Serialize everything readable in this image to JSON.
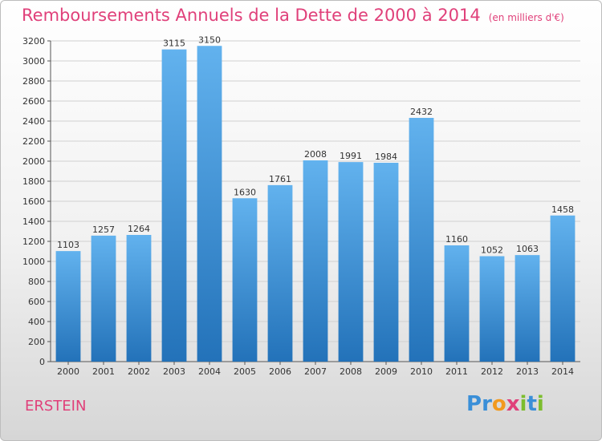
{
  "header": {
    "title": "Remboursements Annuels de la Dette de 2000 à 2014",
    "unit": "(en milliers d'€)"
  },
  "footer": {
    "city": "ERSTEIN",
    "logo_letters": [
      {
        "char": "P",
        "color": "#3a8fd8"
      },
      {
        "char": "r",
        "color": "#3a8fd8"
      },
      {
        "char": "o",
        "color": "#f29a1e"
      },
      {
        "char": "x",
        "color": "#e0407a"
      },
      {
        "char": "i",
        "color": "#7cbd2e"
      },
      {
        "char": "t",
        "color": "#3a8fd8"
      },
      {
        "char": "i",
        "color": "#7cbd2e"
      }
    ]
  },
  "colors": {
    "bar_top": "#62b2ee",
    "bar_bottom": "#2372b9",
    "title": "#e0407a",
    "grid": "#d0d0d0"
  },
  "chart_data": {
    "type": "bar",
    "title": "Remboursements Annuels de la Dette de 2000 à 2014",
    "subtitle": "(en milliers d'€)",
    "xlabel": "",
    "ylabel": "",
    "categories": [
      "2000",
      "2001",
      "2002",
      "2003",
      "2004",
      "2005",
      "2006",
      "2007",
      "2008",
      "2009",
      "2010",
      "2011",
      "2012",
      "2013",
      "2014"
    ],
    "values": [
      1103,
      1257,
      1264,
      3115,
      3150,
      1630,
      1761,
      2008,
      1991,
      1984,
      2432,
      1160,
      1052,
      1063,
      1458
    ],
    "ylim": [
      0,
      3200
    ],
    "ytick_step": 200,
    "grid": true,
    "legend": "none"
  }
}
